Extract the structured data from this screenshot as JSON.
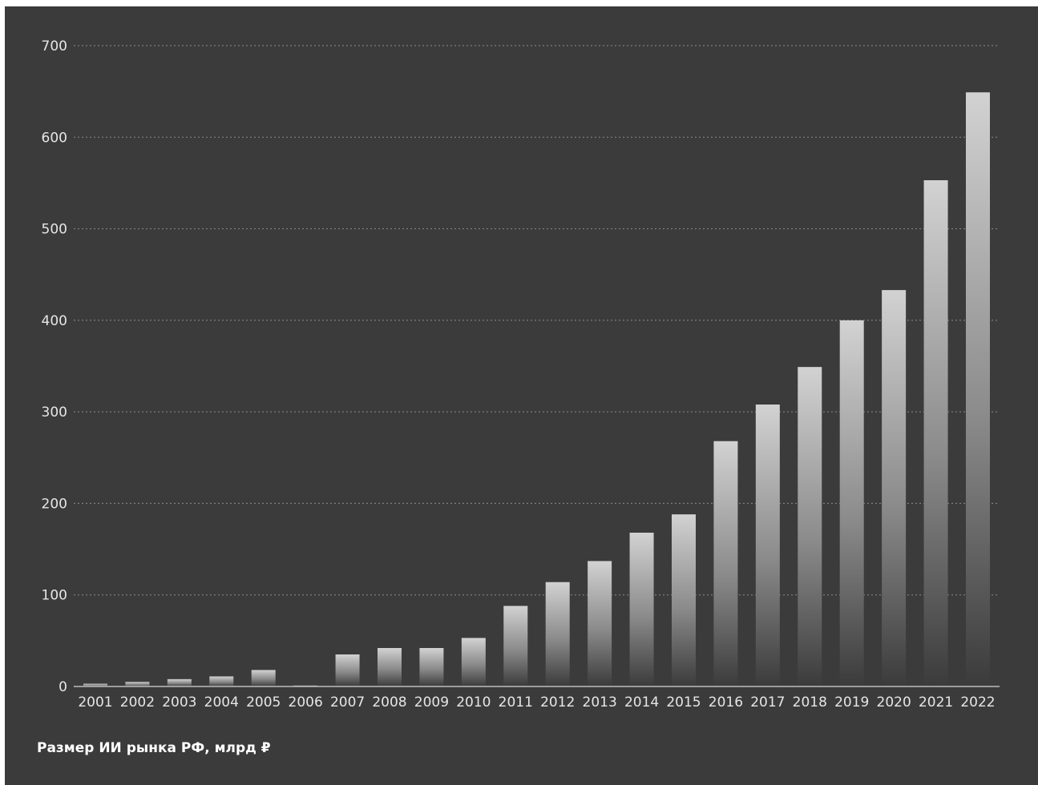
{
  "chart_data": {
    "type": "bar",
    "categories": [
      "2001",
      "2002",
      "2003",
      "2004",
      "2005",
      "2006",
      "2007",
      "2008",
      "2009",
      "2010",
      "2011",
      "2012",
      "2013",
      "2014",
      "2015",
      "2016",
      "2017",
      "2018",
      "2019",
      "2020",
      "2021",
      "2022"
    ],
    "values": [
      3,
      5,
      8,
      11,
      18,
      1,
      35,
      42,
      42,
      53,
      88,
      114,
      137,
      168,
      188,
      268,
      308,
      349,
      400,
      433,
      553,
      649
    ],
    "title": "",
    "xlabel": "",
    "ylabel": "",
    "caption": "Размер ИИ рынка РФ, млрд ₽",
    "yticks": [
      "0",
      "100",
      "200",
      "300",
      "400",
      "500",
      "600",
      "700"
    ],
    "ylim": [
      0,
      700
    ],
    "grid": "horizontal dotted",
    "legend": "none",
    "colors": {
      "background": "#3b3b3b",
      "bar_top": "#d2d2d2",
      "bar_bottom": "#3b3b3b",
      "text": "#e6e6e6",
      "grid": "#9a9a9a"
    }
  }
}
